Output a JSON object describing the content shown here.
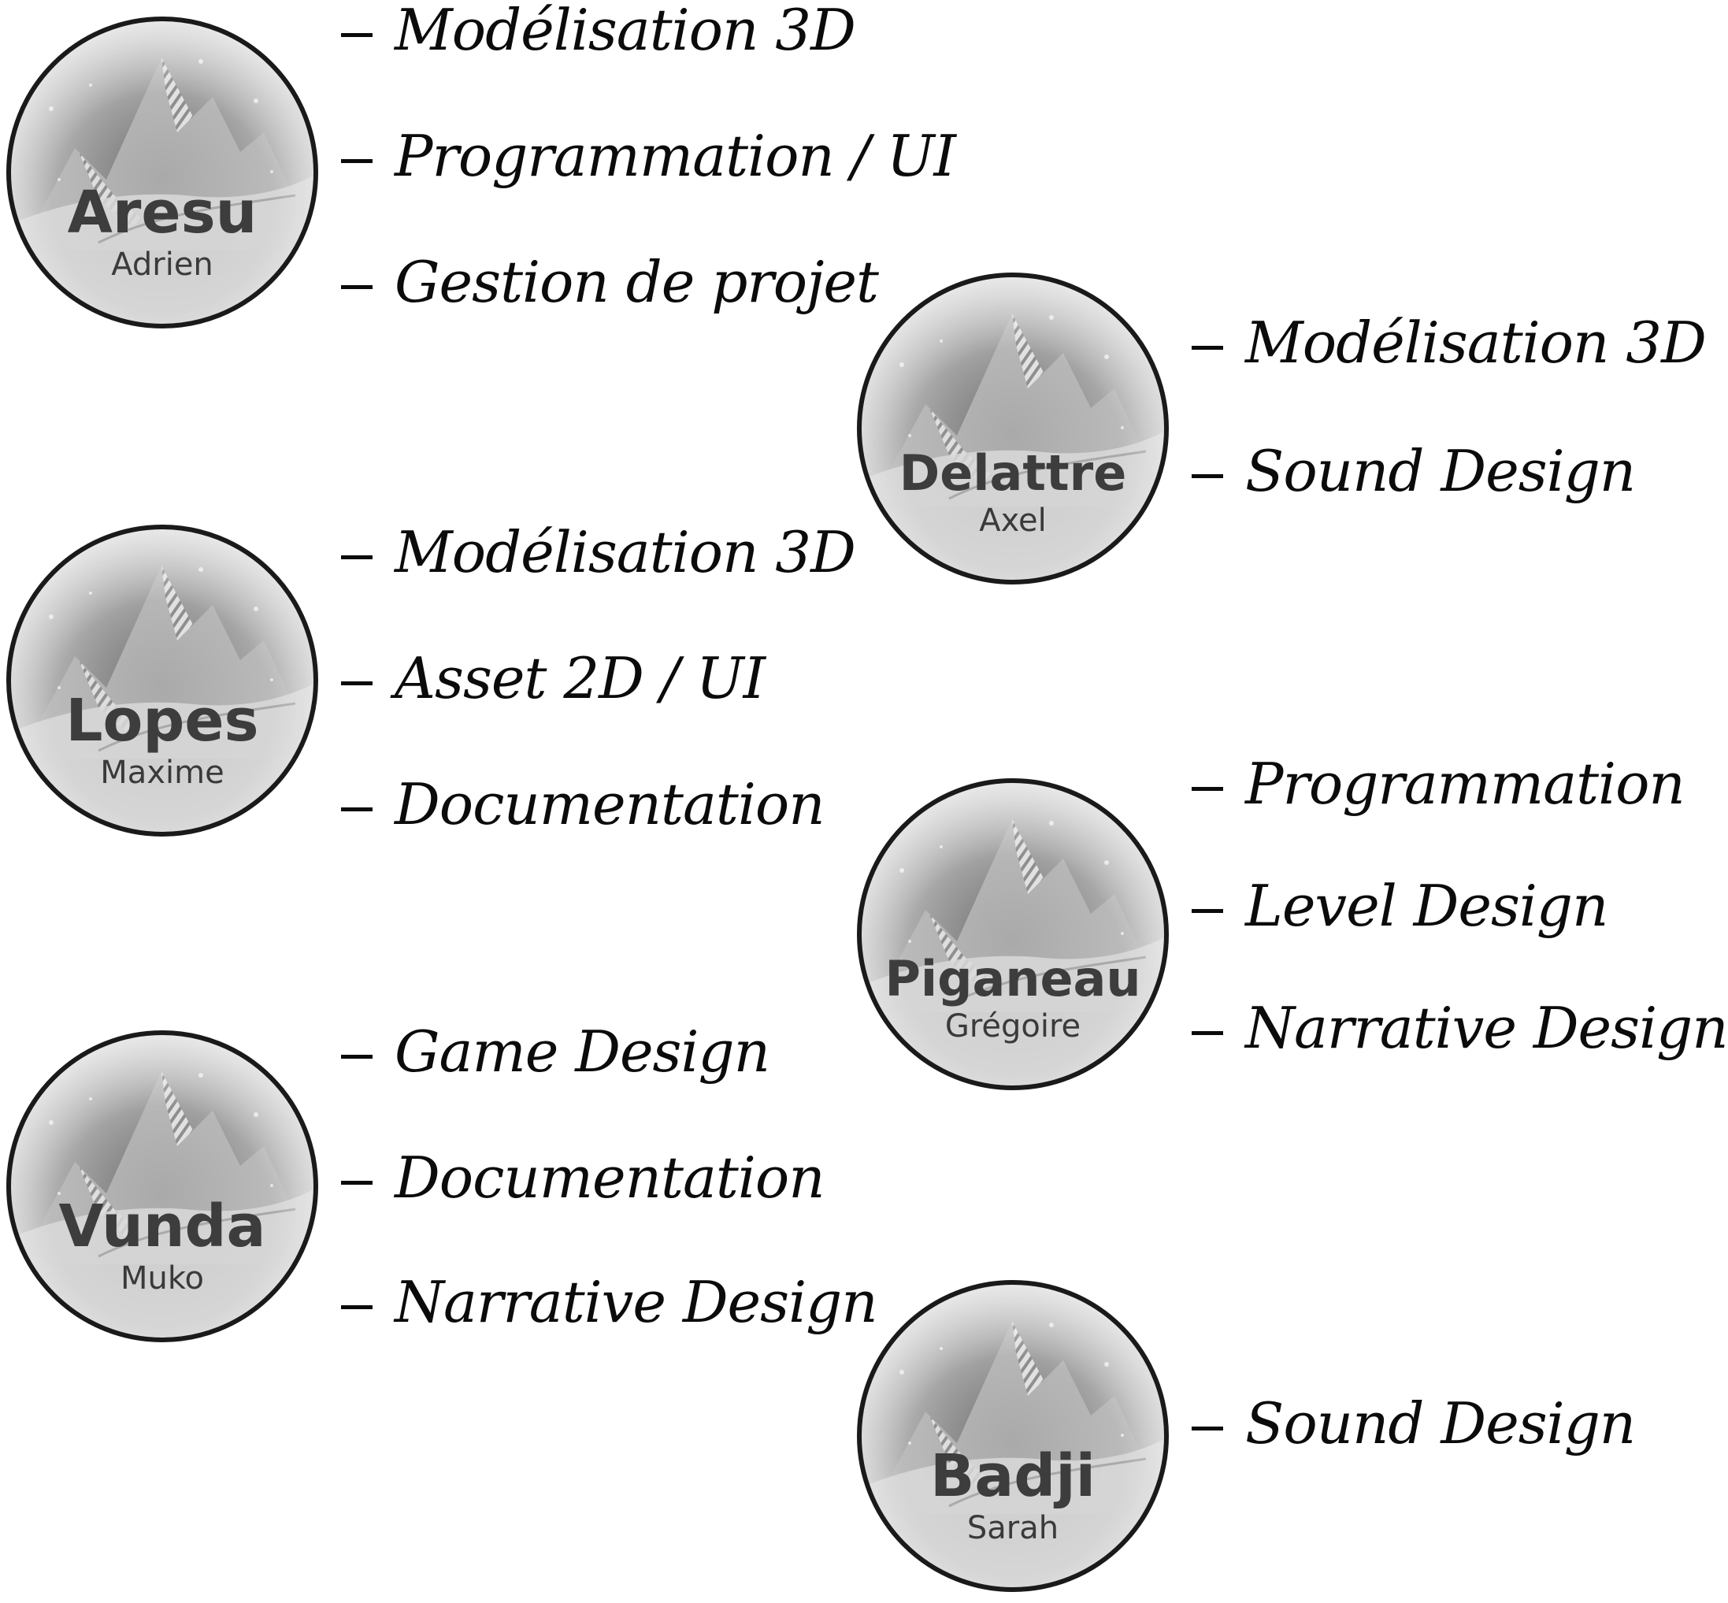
{
  "members": [
    {
      "surname": "Aresu",
      "firstname": "Adrien",
      "roles": [
        "Modélisation 3D",
        "Programmation / UI",
        "Gestion de projet"
      ]
    },
    {
      "surname": "Delattre",
      "firstname": "Axel",
      "roles": [
        "Modélisation 3D",
        "Sound Design"
      ]
    },
    {
      "surname": "Lopes",
      "firstname": "Maxime",
      "roles": [
        "Modélisation 3D",
        "Asset 2D / UI",
        "Documentation"
      ]
    },
    {
      "surname": "Piganeau",
      "firstname": "Grégoire",
      "roles": [
        "Programmation",
        "Level Design",
        "Narrative Design"
      ]
    },
    {
      "surname": "Vunda",
      "firstname": "Muko",
      "roles": [
        "Game Design",
        "Documentation",
        "Narrative Design"
      ]
    },
    {
      "surname": "Badji",
      "firstname": "Sarah",
      "roles": [
        "Sound Design"
      ]
    }
  ],
  "colors": {
    "badge_border": "#1a1a1a",
    "badge_fill": "#b9b9b9",
    "text": "#0b0b0b"
  }
}
